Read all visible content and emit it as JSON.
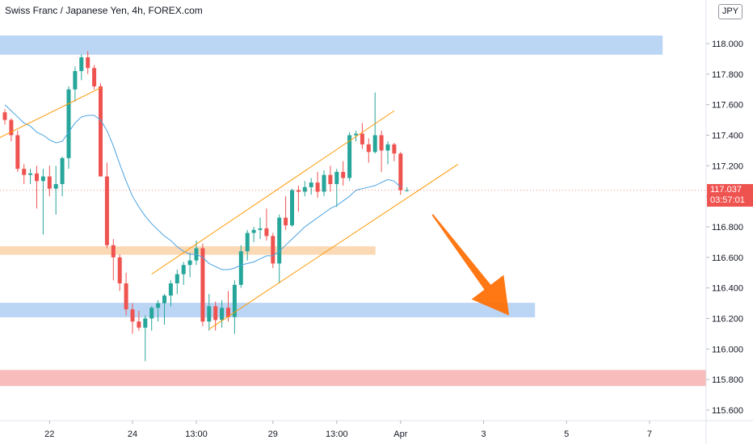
{
  "title": "Swiss Franc / Japanese Yen, 4h, FOREX.com",
  "currency_button": "JPY",
  "last_price": {
    "value": "117.037",
    "countdown": "03:57:01",
    "color": "#ef5350"
  },
  "colors": {
    "up": "#26a69a",
    "down": "#ef5350",
    "ma": "#4aa3e0",
    "channel": "#ff9800",
    "arrow": "#ff6d00",
    "zone_blue": "#bbd5f5",
    "zone_orange": "#fbd9b5",
    "zone_red": "#f8bcbc"
  },
  "chart_data": {
    "type": "candlestick",
    "title": "Swiss Franc / Japanese Yen, 4h, FOREX.com",
    "y_ticks": [
      "115.600",
      "115.800",
      "116.000",
      "116.200",
      "116.400",
      "116.600",
      "116.800",
      "117.000",
      "117.200",
      "117.400",
      "117.600",
      "117.800",
      "118.000"
    ],
    "y_tick_values": [
      115.6,
      115.8,
      116.0,
      116.2,
      116.4,
      116.6,
      116.8,
      117.0,
      117.2,
      117.4,
      117.6,
      117.8,
      118.0
    ],
    "ylim": [
      115.45,
      118.24
    ],
    "x_ticks": [
      "22",
      "24",
      "13:00",
      "29",
      "13:00",
      "Apr",
      "3",
      "5",
      "7"
    ],
    "x_tick_index": [
      7,
      20,
      30,
      42,
      52,
      62,
      75,
      88,
      101
    ],
    "candles": [
      [
        117.55,
        117.57,
        117.47,
        117.5
      ],
      [
        117.5,
        117.51,
        117.36,
        117.4
      ],
      [
        117.4,
        117.43,
        117.16,
        117.18
      ],
      [
        117.18,
        117.21,
        117.08,
        117.14
      ],
      [
        117.14,
        117.18,
        117.08,
        117.15
      ],
      [
        117.15,
        117.2,
        116.92,
        117.1
      ],
      [
        117.1,
        117.18,
        116.75,
        117.13
      ],
      [
        117.13,
        117.2,
        117.0,
        117.05
      ],
      [
        117.05,
        117.2,
        116.88,
        117.08
      ],
      [
        117.08,
        117.26,
        117.0,
        117.25
      ],
      [
        117.25,
        117.72,
        117.18,
        117.7
      ],
      [
        117.7,
        117.85,
        117.62,
        117.82
      ],
      [
        117.82,
        117.93,
        117.76,
        117.91
      ],
      [
        117.91,
        117.95,
        117.8,
        117.84
      ],
      [
        117.84,
        117.86,
        117.7,
        117.72
      ],
      [
        117.72,
        117.74,
        117.15,
        117.13
      ],
      [
        117.13,
        117.22,
        116.66,
        116.68
      ],
      [
        116.68,
        116.72,
        116.45,
        116.6
      ],
      [
        116.6,
        116.62,
        116.38,
        116.43
      ],
      [
        116.43,
        116.5,
        116.22,
        116.26
      ],
      [
        116.26,
        116.3,
        116.1,
        116.18
      ],
      [
        116.18,
        116.25,
        116.12,
        116.14
      ],
      [
        116.14,
        116.22,
        115.92,
        116.2
      ],
      [
        116.2,
        116.28,
        116.12,
        116.27
      ],
      [
        116.27,
        116.32,
        116.18,
        116.3
      ],
      [
        116.3,
        116.36,
        116.16,
        116.35
      ],
      [
        116.35,
        116.45,
        116.28,
        116.43
      ],
      [
        116.43,
        116.52,
        116.36,
        116.49
      ],
      [
        116.49,
        116.57,
        116.42,
        116.55
      ],
      [
        116.55,
        116.63,
        116.47,
        116.58
      ],
      [
        116.58,
        116.71,
        116.55,
        116.66
      ],
      [
        116.66,
        116.69,
        116.15,
        116.18
      ],
      [
        116.18,
        116.36,
        116.12,
        116.28
      ],
      [
        116.28,
        116.31,
        116.12,
        116.19
      ],
      [
        116.19,
        116.32,
        116.14,
        116.27
      ],
      [
        116.27,
        116.38,
        116.18,
        116.21
      ],
      [
        116.21,
        116.45,
        116.1,
        116.42
      ],
      [
        116.42,
        116.68,
        116.4,
        116.64
      ],
      [
        116.64,
        116.78,
        116.58,
        116.76
      ],
      [
        116.76,
        116.8,
        116.7,
        116.78
      ],
      [
        116.78,
        116.86,
        116.72,
        116.79
      ],
      [
        116.79,
        116.92,
        116.71,
        116.74
      ],
      [
        116.74,
        116.76,
        116.53,
        116.56
      ],
      [
        116.56,
        116.88,
        116.43,
        116.86
      ],
      [
        116.86,
        117.0,
        116.78,
        116.81
      ],
      [
        116.81,
        117.05,
        116.8,
        117.04
      ],
      [
        117.04,
        117.07,
        116.9,
        117.03
      ],
      [
        117.03,
        117.1,
        117.0,
        117.06
      ],
      [
        117.06,
        117.12,
        117.01,
        117.09
      ],
      [
        117.09,
        117.16,
        116.99,
        117.03
      ],
      [
        117.03,
        117.17,
        117.0,
        117.14
      ],
      [
        117.14,
        117.2,
        117.03,
        117.08
      ],
      [
        117.08,
        117.18,
        116.93,
        117.16
      ],
      [
        117.16,
        117.23,
        117.07,
        117.12
      ],
      [
        117.12,
        117.42,
        117.1,
        117.4
      ],
      [
        117.4,
        117.43,
        117.36,
        117.41
      ],
      [
        117.41,
        117.48,
        117.31,
        117.34
      ],
      [
        117.34,
        117.38,
        117.22,
        117.29
      ],
      [
        117.29,
        117.68,
        117.28,
        117.4
      ],
      [
        117.4,
        117.43,
        117.16,
        117.3
      ],
      [
        117.3,
        117.36,
        117.21,
        117.34
      ],
      [
        117.34,
        117.35,
        117.23,
        117.28
      ],
      [
        117.28,
        117.29,
        117.01,
        117.04
      ],
      [
        117.04,
        117.06,
        117.03,
        117.04
      ]
    ],
    "series": [
      {
        "type": "moving-average",
        "points": [
          [
            0,
            117.6
          ],
          [
            1,
            117.56
          ],
          [
            2,
            117.52
          ],
          [
            3,
            117.48
          ],
          [
            4,
            117.46
          ],
          [
            5,
            117.42
          ],
          [
            6,
            117.4
          ],
          [
            7,
            117.37
          ],
          [
            8,
            117.35
          ],
          [
            9,
            117.36
          ],
          [
            10,
            117.42
          ],
          [
            11,
            117.48
          ],
          [
            12,
            117.52
          ],
          [
            13,
            117.53
          ],
          [
            14,
            117.53
          ],
          [
            15,
            117.5
          ],
          [
            16,
            117.43
          ],
          [
            17,
            117.33
          ],
          [
            18,
            117.21
          ],
          [
            19,
            117.1
          ],
          [
            20,
            117.0
          ],
          [
            21,
            116.93
          ],
          [
            22,
            116.87
          ],
          [
            23,
            116.82
          ],
          [
            24,
            116.78
          ],
          [
            25,
            116.74
          ],
          [
            26,
            116.71
          ],
          [
            27,
            116.67
          ],
          [
            28,
            116.64
          ],
          [
            29,
            116.62
          ],
          [
            30,
            116.62
          ],
          [
            31,
            116.6
          ],
          [
            32,
            116.56
          ],
          [
            33,
            116.54
          ],
          [
            34,
            116.52
          ],
          [
            35,
            116.52
          ],
          [
            36,
            116.53
          ],
          [
            37,
            116.55
          ],
          [
            38,
            116.56
          ],
          [
            39,
            116.57
          ],
          [
            40,
            116.59
          ],
          [
            41,
            116.61
          ],
          [
            42,
            116.61
          ],
          [
            43,
            116.64
          ],
          [
            44,
            116.68
          ],
          [
            45,
            116.72
          ],
          [
            46,
            116.76
          ],
          [
            47,
            116.8
          ],
          [
            48,
            116.83
          ],
          [
            49,
            116.86
          ],
          [
            50,
            116.89
          ],
          [
            51,
            116.92
          ],
          [
            52,
            116.94
          ],
          [
            53,
            116.97
          ],
          [
            54,
            117.0
          ],
          [
            55,
            117.04
          ],
          [
            56,
            117.05
          ],
          [
            57,
            117.06
          ],
          [
            58,
            117.07
          ],
          [
            59,
            117.09
          ],
          [
            60,
            117.11
          ],
          [
            61,
            117.1
          ],
          [
            62,
            117.06
          ]
        ]
      }
    ],
    "zones": [
      {
        "color": "blue",
        "from": 117.93,
        "to": 118.05,
        "x_end_index": 103
      },
      {
        "color": "orange",
        "from": 116.62,
        "to": 116.67,
        "x_end_index": 58
      },
      {
        "color": "blue",
        "from": 116.21,
        "to": 116.3,
        "x_end_index": 83
      },
      {
        "color": "red",
        "from": 115.76,
        "to": 115.86,
        "x_end_index": 124
      }
    ],
    "trendlines": [
      {
        "from": [
          -1,
          117.38
        ],
        "to": [
          15,
          117.71
        ]
      },
      {
        "from": [
          23,
          116.49
        ],
        "to": [
          61,
          117.56
        ]
      },
      {
        "from": [
          32,
          116.13
        ],
        "to": [
          71,
          117.21
        ]
      }
    ],
    "projection_arrow": {
      "from": [
        67,
        116.88
      ],
      "to": [
        79,
        116.22
      ]
    },
    "grid": false,
    "legend": "none"
  }
}
